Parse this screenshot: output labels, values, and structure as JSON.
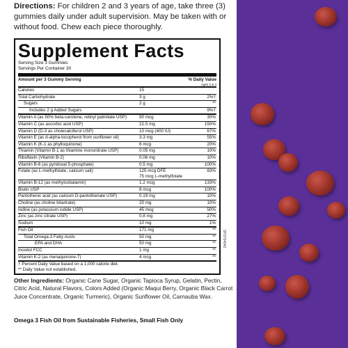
{
  "directions": {
    "label": "Directions:",
    "text": "For children 2 and 3 years of age, take three (3) gummies daily under adult supervision. May be taken with or without food. Chew each piece thoroughly."
  },
  "facts": {
    "title": "Supplement Facts",
    "serving_size": "Serving Size 3 Gummies",
    "servings_per_container": "Servings Per Container 30",
    "amount_header": "Amount per 3 Gummy Serving",
    "dv_header": "% Daily Value",
    "dv_subheader": "Ages 2 & 3",
    "rows": [
      {
        "name": "Calories",
        "amount": "15",
        "dv": "",
        "indent": 0,
        "sep": "med"
      },
      {
        "name": "Total Carbohydrate",
        "amount": "3 g",
        "dv": "2%†",
        "indent": 0
      },
      {
        "name": "Sugars",
        "amount": "2 g",
        "dv": "**",
        "indent": 1
      },
      {
        "name": "Includes 2 g Added Sugars",
        "amount": "",
        "dv": "9%†",
        "indent": 2
      },
      {
        "name": "Vitamin A (as 50% beta-carotene, retinyl palmitate USP)",
        "amount": "90 mcg",
        "dv": "30%",
        "indent": 0,
        "sep": "med"
      },
      {
        "name": "Vitamin C (as ascorbic acid USP)",
        "amount": "22.5 mg",
        "dv": "150%",
        "indent": 0
      },
      {
        "name": "Vitamin D (D-3 as cholecalciferol USP)",
        "amount": "10 mcg (400 IU)",
        "dv": "67%",
        "indent": 0
      },
      {
        "name": "Vitamin E (as d-alpha-tocopherol from sunflower oil)",
        "amount": "3.3 mg",
        "dv": "55%",
        "indent": 0
      },
      {
        "name": "Vitamin K (K-1 as phylloquinone)",
        "amount": "6 mcg",
        "dv": "20%",
        "indent": 0
      },
      {
        "name": "Thiamin (Vitamin B-1 as thiamine mononitrate USP)",
        "amount": "0.05 mg",
        "dv": "10%",
        "indent": 0
      },
      {
        "name": "Riboflavin (Vitamin B-2)",
        "amount": "0.06 mg",
        "dv": "10%",
        "indent": 0
      },
      {
        "name": "Vitamin B-6 (as pyridoxal 5-phosphate)",
        "amount": "0.5 mg",
        "dv": "100%",
        "indent": 0
      },
      {
        "name": "Folate (as L-methylfolate, calcium salt)",
        "amount": "125 mcg DFE",
        "amount2": "75 mcg L-methylfolate",
        "dv": "83%",
        "indent": 0
      },
      {
        "name": "Vitamin B-12 (as methylcobalamin)",
        "amount": "1.2 mcg",
        "dv": "133%",
        "indent": 0
      },
      {
        "name": "Biotin USP",
        "amount": "8 mcg",
        "dv": "100%",
        "indent": 0
      },
      {
        "name": "Pantothenic acid (as calcium D-pantothenate USP)",
        "amount": "0.19 mg",
        "dv": "10%",
        "indent": 0
      },
      {
        "name": "Choline (as choline bitartrate)",
        "amount": "20 mg",
        "dv": "10%",
        "indent": 0
      },
      {
        "name": "Iodine (as potassium iodide USP)",
        "amount": "45 mcg",
        "dv": "50%",
        "indent": 0
      },
      {
        "name": "Zinc (as zinc citrate USP)",
        "amount": "0.8 mg",
        "dv": "27%",
        "indent": 0
      },
      {
        "name": "Sodium",
        "amount": "10 mg",
        "dv": "1%",
        "indent": 0
      },
      {
        "name": "Fish Oil",
        "amount": "171 mg",
        "dv": "**",
        "indent": 0,
        "sep": "med"
      },
      {
        "name": "Total Omega-3 Fatty Acids",
        "amount": "50 mg",
        "dv": "**",
        "indent": 1
      },
      {
        "name": "EPA and DHA",
        "amount": "50 mg",
        "dv": "**",
        "indent": 3
      },
      {
        "name": "Inositol FCC",
        "amount": "1 mg",
        "dv": "**",
        "indent": 0
      },
      {
        "name": "Vitamin K-2 (as menaquinone-7)",
        "amount": "4 mcg",
        "dv": "**",
        "indent": 0
      }
    ],
    "footnote1": "† Percent Daily Value based on a 1,000 calorie diet.",
    "footnote2": "** Daily Value not established."
  },
  "side_code": "SFS704042",
  "other_ingredients": {
    "label": "Other Ingredients:",
    "text": "Organic Cane Sugar, Organic Tapioca Syrup, Gelatin, Pectin, Citric Acid, Natural Flavors, Colors Added (Organic Maqui Berry, Organic Black Carrot Juice Concentrate, Organic Turmeric), Organic Sunflower Oil, Carnauba Wax."
  },
  "omega_note": "Omega 3 Fish Oil from Sustainable Fisheries, Small Fish Only",
  "colors": {
    "background_purple": "#5a2f98",
    "gummy_red": "#a63a2f",
    "text": "#111111"
  }
}
